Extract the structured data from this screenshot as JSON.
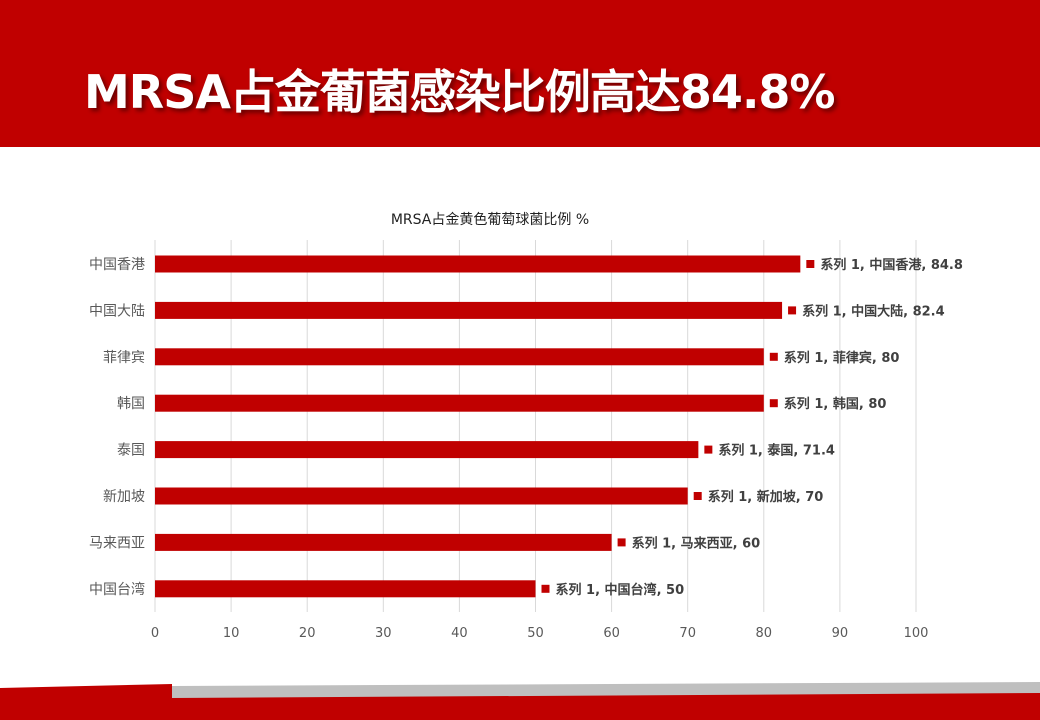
{
  "slide": {
    "title": "MRSA占金葡菌感染比例高达84.8%"
  },
  "colors": {
    "accent": "#c00000",
    "bar": "#c00000",
    "grid": "#d9d9d9",
    "axis_text": "#595959",
    "label_text": "#404040"
  },
  "chart_data": {
    "type": "bar",
    "orientation": "horizontal",
    "title": "MRSA占金黄色葡萄球菌比例 %",
    "categories": [
      "中国香港",
      "中国大陆",
      "菲律宾",
      "韩国",
      "泰国",
      "新加坡",
      "马来西亚",
      "中国台湾"
    ],
    "series": [
      {
        "name": "系列 1",
        "values": [
          84.8,
          82.4,
          80,
          80,
          71.4,
          70,
          60,
          50
        ]
      }
    ],
    "xlim": [
      0,
      100
    ],
    "xticks": [
      0,
      10,
      20,
      30,
      40,
      50,
      60,
      70,
      80,
      90,
      100
    ],
    "grid": true,
    "legend": "none",
    "data_label_format": "series, category, value"
  }
}
